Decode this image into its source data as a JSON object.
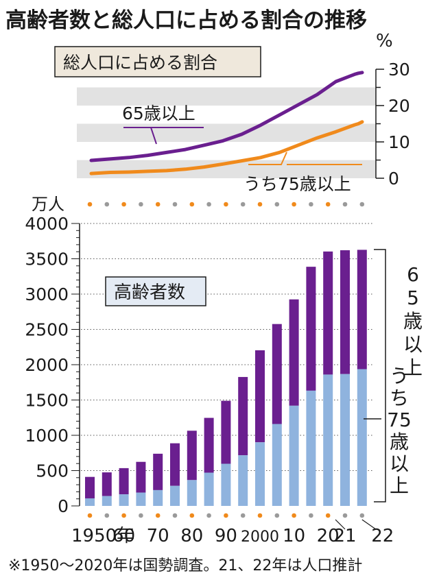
{
  "title": "高齢者数と総人口に占める割合の推移",
  "footnote": "※1950～2020年は国勢調査。21、22年は人口推計",
  "colors": {
    "purple": "#6a1f8f",
    "orange": "#f08a1c",
    "blue": "#8fb3de",
    "band": "#e2e2e2",
    "label_bg": "#efe8dc",
    "label_bg2": "#e4ebf4",
    "dot_gray": "#9a9a9a",
    "text": "#1a1a1a"
  },
  "chart_data": [
    {
      "type": "line",
      "title": "総人口に占める割合",
      "ylabel": "%",
      "ylim": [
        0,
        30
      ],
      "yticks": [
        "0",
        "10",
        "20",
        "30"
      ],
      "x": [
        1950,
        1955,
        1960,
        1965,
        1970,
        1975,
        1980,
        1985,
        1990,
        1995,
        2000,
        2005,
        2010,
        2015,
        2020,
        2021,
        2022
      ],
      "series": [
        {
          "name": "65歳以上",
          "values": [
            4.9,
            5.3,
            5.7,
            6.3,
            7.1,
            7.9,
            9.1,
            10.3,
            12.1,
            14.6,
            17.4,
            20.2,
            23.0,
            26.6,
            28.6,
            28.9,
            29.1
          ]
        },
        {
          "name": "うち75歳以上",
          "values": [
            1.3,
            1.6,
            1.7,
            1.9,
            2.1,
            2.5,
            3.1,
            3.9,
            4.8,
            5.7,
            7.1,
            9.1,
            11.1,
            12.8,
            14.7,
            15.0,
            15.5
          ]
        }
      ]
    },
    {
      "type": "bar",
      "title": "高齢者数",
      "ylabel": "万人",
      "ylim": [
        0,
        4000
      ],
      "yticks": [
        "0",
        "500",
        "1000",
        "1500",
        "2000",
        "2500",
        "3000",
        "3500",
        "4000"
      ],
      "categories": [
        1950,
        1955,
        1960,
        1965,
        1970,
        1975,
        1980,
        1985,
        1990,
        1995,
        2000,
        2005,
        2010,
        2015,
        2020,
        2021,
        2022
      ],
      "x_tick_labels": [
        {
          "index": 0,
          "label": "1950年"
        },
        {
          "index": 2,
          "label": "60"
        },
        {
          "index": 4,
          "label": "70"
        },
        {
          "index": 6,
          "label": "80"
        },
        {
          "index": 8,
          "label": "90"
        },
        {
          "index": 10,
          "label": "2000"
        },
        {
          "index": 12,
          "label": "10"
        },
        {
          "index": 14,
          "label": "20"
        },
        {
          "index": 15,
          "label": "21"
        },
        {
          "index": 16,
          "label": "22"
        }
      ],
      "series": [
        {
          "name": "65歳以上",
          "values": [
            411,
            475,
            535,
            624,
            739,
            887,
            1065,
            1247,
            1489,
            1826,
            2204,
            2576,
            2925,
            3387,
            3603,
            3621,
            3627
          ]
        },
        {
          "name": "うち75歳以上",
          "values": [
            107,
            139,
            164,
            189,
            224,
            284,
            366,
            471,
            597,
            717,
            901,
            1160,
            1419,
            1632,
            1860,
            1867,
            1937
          ]
        }
      ]
    }
  ]
}
